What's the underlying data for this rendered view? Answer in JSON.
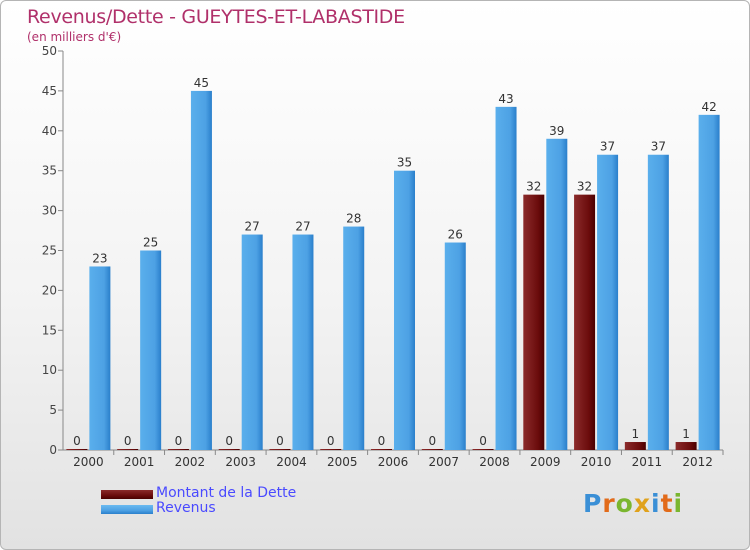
{
  "header": {
    "title": "Revenus/Dette - GUEYTES-ET-LABASTIDE",
    "subtitle": "(en milliers d'€)"
  },
  "legend": {
    "items": [
      {
        "label": "Montant de la Dette",
        "color": "#6b0c0c"
      },
      {
        "label": "Revenus",
        "color": "#4da1e4"
      }
    ]
  },
  "logo": {
    "text": "Proxiti"
  },
  "chart_data": {
    "type": "bar",
    "categories": [
      "2000",
      "2001",
      "2002",
      "2003",
      "2004",
      "2005",
      "2006",
      "2007",
      "2008",
      "2009",
      "2010",
      "2011",
      "2012"
    ],
    "series": [
      {
        "name": "Montant de la Dette",
        "color": "#6b0c0c",
        "values": [
          0,
          0,
          0,
          0,
          0,
          0,
          0,
          0,
          0,
          32,
          32,
          1,
          1
        ]
      },
      {
        "name": "Revenus",
        "color": "#4da1e4",
        "values": [
          23,
          25,
          45,
          27,
          27,
          28,
          35,
          26,
          43,
          39,
          37,
          37,
          42
        ]
      }
    ],
    "ylim": [
      0,
      50
    ],
    "yticks": [
      0,
      5,
      10,
      15,
      20,
      25,
      30,
      35,
      40,
      45,
      50
    ],
    "grid": false,
    "legend_position": "bottom-left"
  }
}
